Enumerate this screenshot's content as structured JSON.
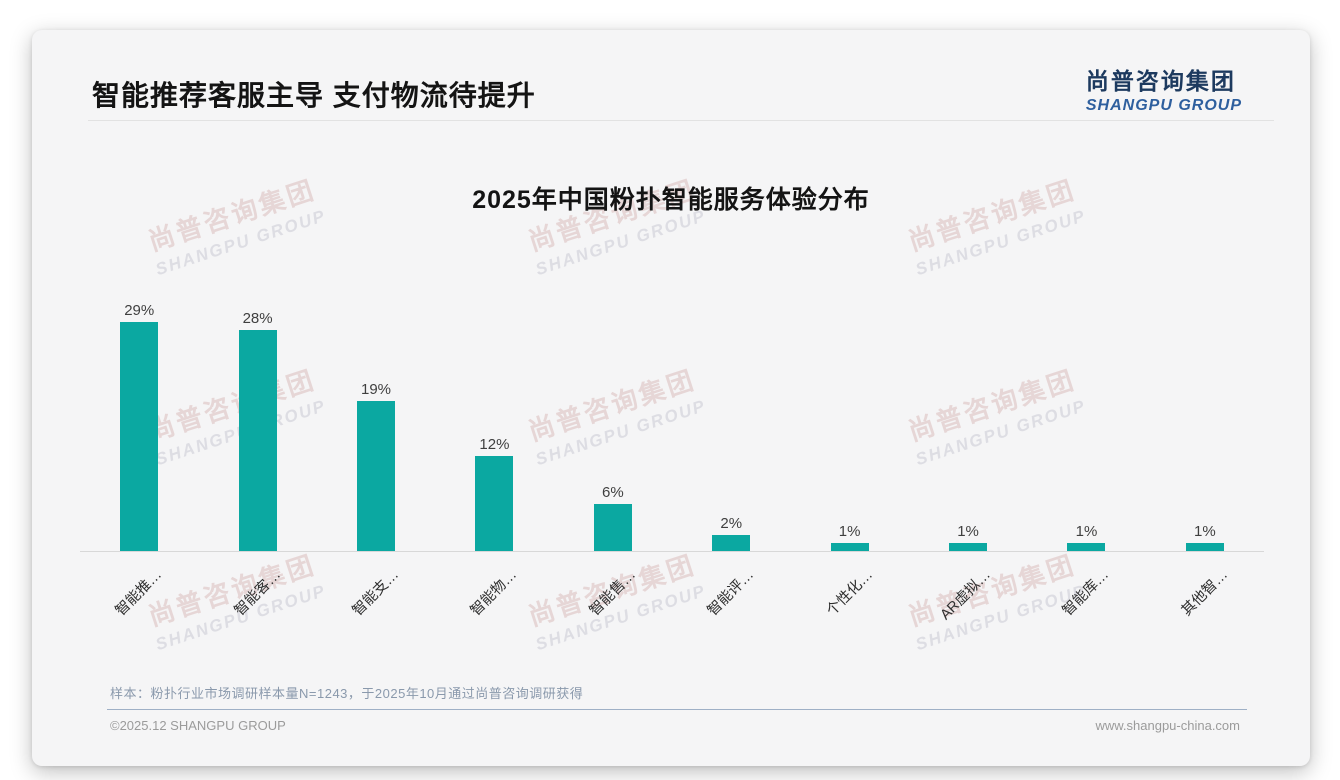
{
  "header": {
    "title": "智能推荐客服主导 支付物流待提升"
  },
  "logo": {
    "chinese": "尚普咨询集团",
    "english": "SHANGPU GROUP"
  },
  "watermark": {
    "line1": "尚普咨询集团",
    "line2": "SHANGPU GROUP"
  },
  "chart_data": {
    "type": "bar",
    "title": "2025年中国粉扑智能服务体验分布",
    "categories": [
      "智能推…",
      "智能客…",
      "智能支…",
      "智能物…",
      "智能售…",
      "智能评…",
      "个性化…",
      "AR虚拟…",
      "智能库…",
      "其他智…"
    ],
    "values": [
      29,
      28,
      19,
      12,
      6,
      2,
      1,
      1,
      1,
      1
    ],
    "value_labels": [
      "29%",
      "28%",
      "19%",
      "12%",
      "6%",
      "2%",
      "1%",
      "1%",
      "1%",
      "1%"
    ],
    "unit": "%",
    "xlabel": "",
    "ylabel": "",
    "ylim": [
      0,
      32
    ],
    "grid": false,
    "legend": false,
    "bar_color": "#0ba8a1",
    "x_label_rotation": 45
  },
  "footnote": {
    "text": "样本：粉扑行业市场调研样本量N=1243，于2025年10月通过尚普咨询调研获得"
  },
  "footer": {
    "left": "©2025.12 SHANGPU GROUP",
    "right": "www.shangpu-china.com"
  },
  "colors": {
    "bar": "#0ba8a1",
    "card_background": "#f5f5f6",
    "logo_chinese": "#1d3a5f",
    "logo_english": "#2e5f9e",
    "footnote_text": "#8a99ac",
    "footer_divider": "#9fb0c6",
    "watermark_chinese": "#e6d6d6",
    "watermark_english": "#dddde3"
  }
}
